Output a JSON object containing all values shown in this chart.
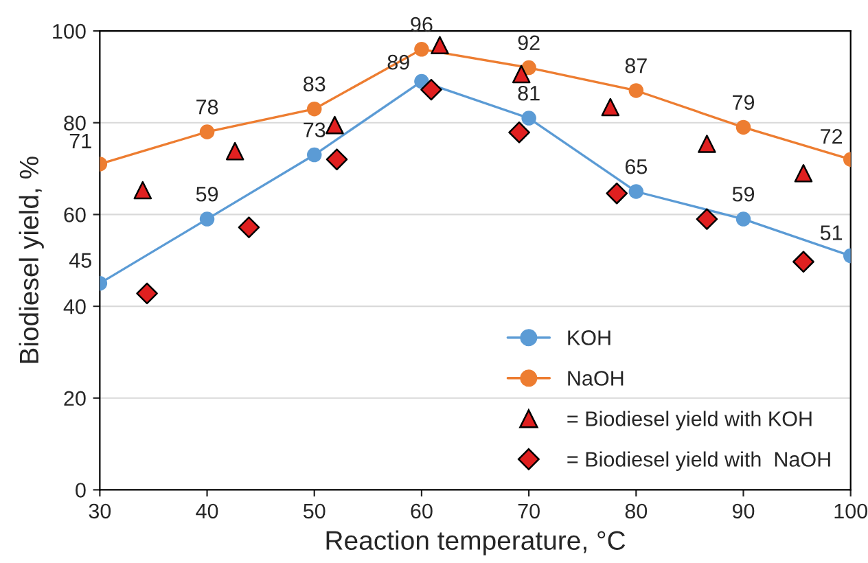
{
  "chart_data": {
    "type": "line",
    "xlabel": "Reaction temperature, °C",
    "ylabel": "Biodiesel yield, %",
    "xlim": [
      30,
      100
    ],
    "xticks": [
      30,
      40,
      50,
      60,
      70,
      80,
      90,
      100
    ],
    "ylim": [
      0,
      100
    ],
    "yticks": [
      0,
      20,
      40,
      60,
      80,
      100
    ],
    "grid": "y",
    "legend": "bottom right",
    "series": [
      {
        "name": "KOH",
        "marker": "circle",
        "color": "#5b9bd5",
        "x": [
          30,
          40,
          50,
          60,
          70,
          80,
          90,
          100
        ],
        "values": [
          45,
          59,
          73,
          89,
          81,
          65,
          59,
          51
        ],
        "value_labels": [
          "45",
          "59",
          "73",
          "89",
          "81",
          "65",
          "59",
          "51"
        ]
      },
      {
        "name": "NaOH",
        "marker": "circle",
        "color": "#ed7d31",
        "x": [
          30,
          40,
          50,
          60,
          70,
          80,
          90,
          100
        ],
        "values": [
          71,
          78,
          83,
          96,
          92,
          87,
          79,
          72
        ],
        "value_labels": [
          "71",
          "78",
          "83",
          "96",
          "92",
          "87",
          "79",
          "72"
        ]
      },
      {
        "name": "= Biodiesel yield with KOH",
        "type": "scatter",
        "marker": "triangle",
        "color": "#e02020",
        "x": [
          34,
          42.6,
          51.9,
          61.7,
          69.3,
          77.6,
          86.6,
          95.6
        ],
        "values": [
          65.3,
          73.8,
          79.5,
          96.9,
          90.6,
          83.4,
          75.4,
          69
        ]
      },
      {
        "name": "= Biodiesel yield with  NaOH",
        "type": "scatter",
        "marker": "diamond",
        "color": "#e02020",
        "x": [
          34.4,
          43.9,
          52.1,
          60.9,
          69.1,
          78.2,
          86.6,
          95.6
        ],
        "values": [
          42.8,
          57.2,
          72,
          87.2,
          77.9,
          64.6,
          59,
          49.7
        ]
      }
    ]
  }
}
